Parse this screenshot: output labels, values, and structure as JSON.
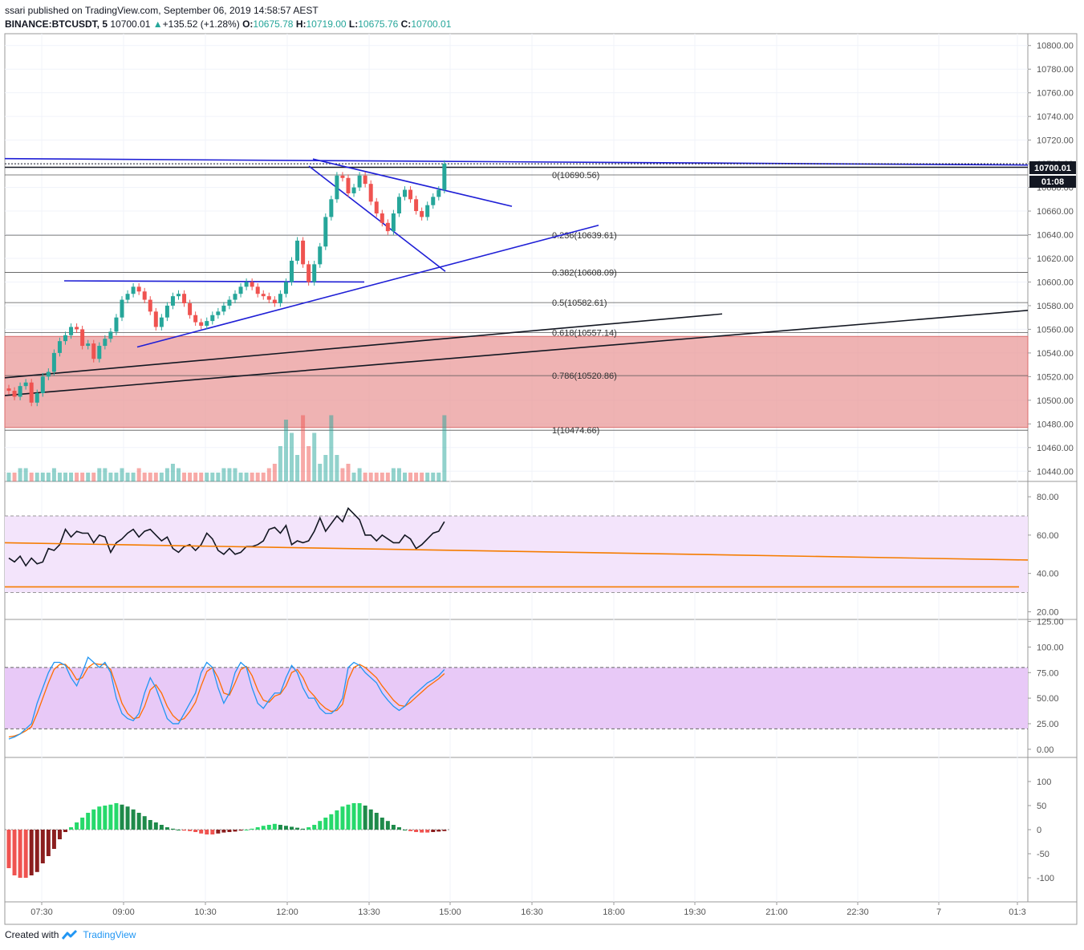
{
  "header": {
    "publisher": "ssari published on TradingView.com, September 06, 2019 14:58:57 AEST",
    "symbol": "BINANCE:BTCUSDT, 5",
    "last": "10700.01",
    "change": "+135.52 (+1.28%)",
    "o_label": "O:",
    "o": "10675.78",
    "h_label": "H:",
    "h": "10719.00",
    "l_label": "L:",
    "l": "10675.76",
    "c_label": "C:",
    "c": "10700.01"
  },
  "footer": {
    "created": "Created with",
    "brand": "TradingView"
  },
  "price_tag": {
    "price": "10700.01",
    "countdown": "01:08"
  },
  "colors": {
    "up": "#26a69a",
    "down": "#ef5350",
    "trend": "#1f1fd6",
    "zone": "#e99a9a",
    "rsi_band": "#f3e4fb",
    "stoch_band": "#e8c9f7"
  },
  "chart_data": [
    {
      "type": "candlestick",
      "symbol": "BINANCE:BTCUSDT",
      "interval": "5",
      "ylim": [
        10430,
        10810
      ],
      "y_ticks": [
        "10800.00",
        "10780.00",
        "10760.00",
        "10740.00",
        "10720.00",
        "10700.00",
        "10680.00",
        "10660.00",
        "10640.00",
        "10620.00",
        "10600.00",
        "10580.00",
        "10560.00",
        "10540.00",
        "10520.00",
        "10500.00",
        "10480.00",
        "10460.00",
        "10440.00"
      ],
      "x_ticks": [
        "07:30",
        "09:00",
        "10:30",
        "12:00",
        "13:30",
        "15:00",
        "16:30",
        "18:00",
        "19:30",
        "21:00",
        "22:30",
        "7",
        "01:3"
      ],
      "fib_levels": [
        {
          "label": "0(10690.56)",
          "value": 10690.56
        },
        {
          "label": "0.236(10639.61)",
          "value": 10639.61
        },
        {
          "label": "0.382(10608.09)",
          "value": 10608.09
        },
        {
          "label": "0.5(10582.61)",
          "value": 10582.61
        },
        {
          "label": "0.618(10557.14)",
          "value": 10557.14
        },
        {
          "label": "0.786(10520.86)",
          "value": 10520.86
        },
        {
          "label": "1(10474.66)",
          "value": 10474.66
        }
      ],
      "demand_zone": [
        10477,
        10554
      ],
      "closes": [
        10508,
        10503,
        10512,
        10515,
        10498,
        10506,
        10520,
        10524,
        10540,
        10550,
        10555,
        10562,
        10560,
        10546,
        10548,
        10535,
        10546,
        10552,
        10558,
        10570,
        10585,
        10590,
        10596,
        10592,
        10585,
        10575,
        10562,
        10570,
        10580,
        10588,
        10590,
        10582,
        10572,
        10566,
        10563,
        10567,
        10572,
        10575,
        10580,
        10585,
        10590,
        10596,
        10600,
        10596,
        10590,
        10588,
        10585,
        10582,
        10590,
        10600,
        10618,
        10635,
        10615,
        10600,
        10615,
        10630,
        10655,
        10670,
        10690,
        10688,
        10675,
        10680,
        10690,
        10683,
        10668,
        10658,
        10650,
        10643,
        10658,
        10672,
        10678,
        10670,
        10660,
        10655,
        10665,
        10672,
        10678,
        10700.01
      ],
      "volumes": [
        2,
        2,
        3,
        3,
        2,
        2,
        2,
        2,
        3,
        2,
        2,
        2,
        2,
        2,
        2,
        2,
        3,
        3,
        2,
        2,
        3,
        2,
        2,
        3,
        2,
        2,
        2,
        2,
        3,
        4,
        3,
        2,
        2,
        2,
        2,
        2,
        2,
        2,
        3,
        3,
        3,
        2,
        2,
        2,
        2,
        2,
        3,
        4,
        8,
        14,
        11,
        6,
        15,
        8,
        11,
        4,
        6,
        15,
        6,
        3,
        4,
        2,
        3,
        2,
        2,
        2,
        2,
        2,
        3,
        3,
        2,
        2,
        2,
        2,
        2,
        2,
        2,
        15
      ]
    },
    {
      "type": "line",
      "name": "RSI",
      "ylim": [
        16,
        88
      ],
      "y_ticks": [
        "80.00",
        "60.00",
        "40.00",
        "20.00"
      ],
      "band": [
        30,
        70
      ],
      "values": [
        48,
        46,
        49,
        44,
        48,
        45,
        46,
        53,
        52,
        55,
        63,
        59,
        62,
        61,
        61,
        56,
        60,
        59,
        51,
        56,
        58,
        61,
        63,
        59,
        62,
        63,
        60,
        57,
        59,
        53,
        51,
        54,
        55,
        52,
        55,
        61,
        58,
        52,
        50,
        53,
        50,
        51,
        54,
        54,
        55,
        57,
        63,
        64,
        61,
        65,
        55,
        57,
        56,
        57,
        62,
        69,
        62,
        66,
        70,
        67,
        74,
        71,
        68,
        60,
        60,
        57,
        60,
        58,
        56,
        56,
        60,
        58,
        53,
        55,
        58,
        61,
        62,
        67
      ]
    },
    {
      "type": "line",
      "name": "Stochastic RSI",
      "ylim": [
        -8,
        127
      ],
      "y_ticks": [
        "125.00",
        "100.00",
        "75.00",
        "50.00",
        "25.00",
        "0.00"
      ],
      "band": [
        20,
        80
      ],
      "k": [
        10,
        12,
        15,
        20,
        25,
        45,
        60,
        75,
        85,
        85,
        82,
        70,
        62,
        75,
        90,
        85,
        80,
        85,
        75,
        50,
        35,
        30,
        28,
        35,
        55,
        70,
        60,
        45,
        30,
        25,
        25,
        35,
        45,
        55,
        75,
        85,
        80,
        60,
        45,
        55,
        75,
        85,
        80,
        60,
        45,
        40,
        48,
        55,
        55,
        70,
        82,
        75,
        60,
        50,
        50,
        40,
        35,
        35,
        40,
        50,
        80,
        85,
        82,
        75,
        70,
        65,
        55,
        48,
        42,
        38,
        42,
        50,
        55,
        60,
        65,
        68,
        72,
        78
      ],
      "d": [
        12,
        13,
        15,
        18,
        22,
        35,
        50,
        65,
        78,
        83,
        83,
        77,
        68,
        70,
        80,
        84,
        83,
        83,
        78,
        62,
        45,
        35,
        30,
        31,
        42,
        58,
        63,
        55,
        42,
        33,
        28,
        30,
        37,
        46,
        62,
        76,
        80,
        70,
        55,
        53,
        65,
        78,
        81,
        72,
        58,
        48,
        46,
        52,
        54,
        62,
        75,
        78,
        70,
        58,
        52,
        45,
        40,
        37,
        38,
        44,
        68,
        80,
        83,
        80,
        75,
        70,
        62,
        55,
        48,
        43,
        42,
        46,
        51,
        56,
        61,
        65,
        69,
        74
      ]
    },
    {
      "type": "bar",
      "name": "MACD histogram",
      "ylim": [
        -150,
        150
      ],
      "y_ticks": [
        "100",
        "50",
        "0",
        "-50",
        "-100"
      ],
      "values": [
        -80,
        -95,
        -100,
        -100,
        -95,
        -88,
        -70,
        -55,
        -40,
        -20,
        -5,
        5,
        15,
        25,
        35,
        42,
        48,
        50,
        52,
        55,
        52,
        48,
        42,
        35,
        28,
        20,
        15,
        10,
        5,
        2,
        0,
        -2,
        -3,
        -5,
        -8,
        -10,
        -10,
        -8,
        -6,
        -5,
        -4,
        -2,
        0,
        2,
        5,
        8,
        10,
        12,
        10,
        8,
        6,
        4,
        2,
        5,
        10,
        18,
        25,
        32,
        40,
        48,
        52,
        55,
        55,
        50,
        42,
        35,
        25,
        18,
        10,
        5,
        0,
        -3,
        -5,
        -6,
        -6,
        -5,
        -4,
        -3
      ]
    }
  ]
}
